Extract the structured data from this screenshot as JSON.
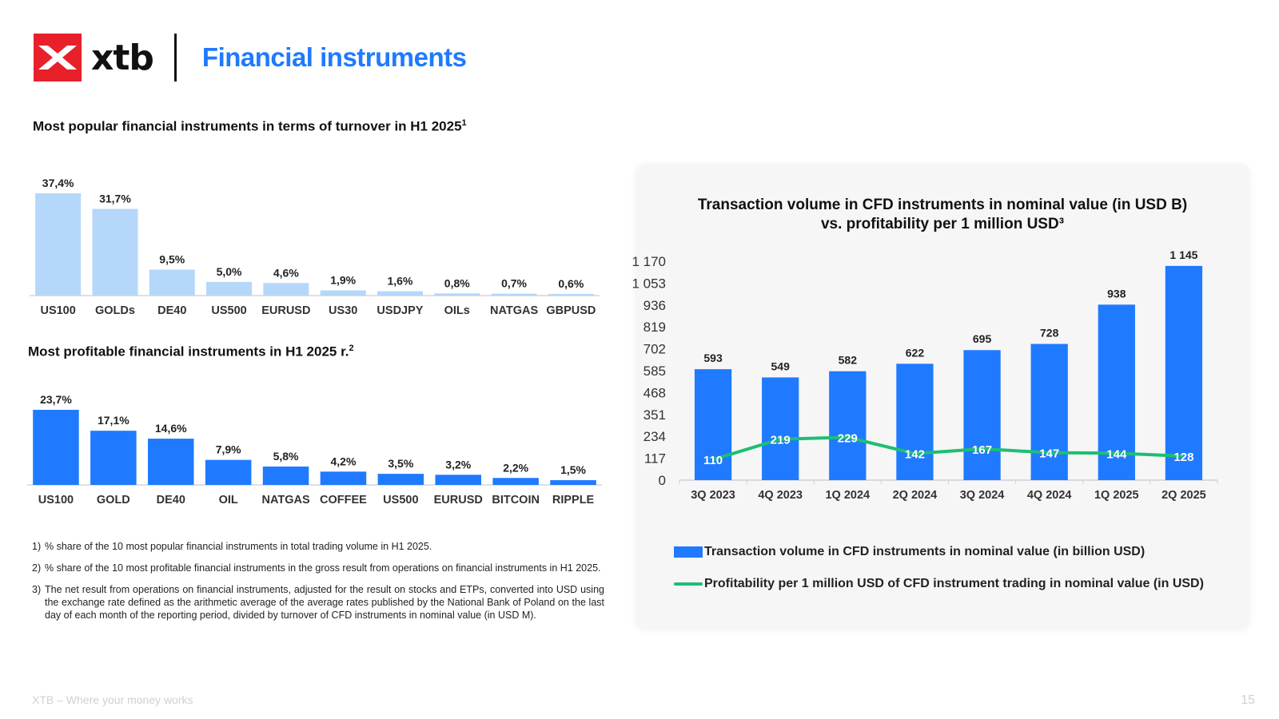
{
  "header": {
    "logo_text": "xtb",
    "title": "Financial instruments"
  },
  "turnover_section": {
    "title": "Most popular financial instruments in terms of turnover in H1 2025",
    "title_sup": "1"
  },
  "profit_section": {
    "title": "Most profitable financial instruments in H1 2025 r.",
    "title_sup": "2"
  },
  "panel": {
    "title_line1": "Transaction volume in CFD instruments in nominal value (in USD B)",
    "title_line2": "vs. profitability per 1 million USD³"
  },
  "legend": {
    "bar_label": "Transaction volume in CFD instruments in nominal value (in billion USD)",
    "line_label": "Profitability per 1 million USD of CFD instrument trading in nominal value (in USD)"
  },
  "notes": [
    {
      "num": "1)",
      "text": "% share of the 10 most popular financial instruments in total trading volume in H1 2025."
    },
    {
      "num": "2)",
      "text": "% share of the 10 most profitable financial instruments in the gross result from operations on financial instruments in H1 2025."
    },
    {
      "num": "3)",
      "text": "The net result from operations on financial instruments, adjusted for the result on stocks and ETPs, converted into USD using the exchange rate defined as the arithmetic average of the average rates published by the National Bank of Poland on the last day of each month of the reporting period, divided by turnover of CFD instruments in nominal value (in USD M)."
    }
  ],
  "footer": {
    "tagline": "XTB – Where your money works",
    "page_number": "15"
  },
  "colors": {
    "brand_red": "#e8202a",
    "title_blue": "#1f7aff",
    "light_bar": "#b5d7fa",
    "bar_blue": "#1f7aff",
    "line_green": "#1dbf73"
  },
  "chart_data": [
    {
      "type": "bar",
      "title": "Most popular financial instruments in terms of turnover in H1 2025",
      "categories": [
        "US100",
        "GOLDs",
        "DE40",
        "US500",
        "EURUSD",
        "US30",
        "USDJPY",
        "OILs",
        "NATGAS",
        "GBPUSD"
      ],
      "values": [
        37.4,
        31.7,
        9.5,
        5.0,
        4.6,
        1.9,
        1.6,
        0.8,
        0.7,
        0.6
      ],
      "labels": [
        "37,4%",
        "31,7%",
        "9,5%",
        "5,0%",
        "4,6%",
        "1,9%",
        "1,6%",
        "0,8%",
        "0,7%",
        "0,6%"
      ],
      "unit": "%",
      "color": "#b5d7fa"
    },
    {
      "type": "bar",
      "title": "Most profitable financial instruments in H1 2025 r.",
      "categories": [
        "US100",
        "GOLD",
        "DE40",
        "OIL",
        "NATGAS",
        "COFFEE",
        "US500",
        "EURUSD",
        "BITCOIN",
        "RIPPLE"
      ],
      "values": [
        23.7,
        17.1,
        14.6,
        7.9,
        5.8,
        4.2,
        3.5,
        3.2,
        2.2,
        1.5
      ],
      "labels": [
        "23,7%",
        "17,1%",
        "14,6%",
        "7,9%",
        "5,8%",
        "4,2%",
        "3,5%",
        "3,2%",
        "2,2%",
        "1,5%"
      ],
      "unit": "%",
      "color": "#1f7aff"
    },
    {
      "type": "bar",
      "title": "Transaction volume in CFD instruments in nominal value (in USD B) vs. profitability per 1 million USD³",
      "categories": [
        "3Q 2023",
        "4Q 2023",
        "1Q 2024",
        "2Q 2024",
        "3Q 2024",
        "4Q 2024",
        "1Q 2025",
        "2Q 2025"
      ],
      "series": [
        {
          "name": "Transaction volume in CFD instruments in nominal value (in billion USD)",
          "type": "bar",
          "values": [
            593,
            549,
            582,
            622,
            695,
            728,
            938,
            1145
          ],
          "labels": [
            "593",
            "549",
            "582",
            "622",
            "695",
            "728",
            "938",
            "1 145"
          ],
          "color": "#1f7aff"
        },
        {
          "name": "Profitability per 1 million USD of CFD instrument trading in nominal value (in USD)",
          "type": "line",
          "values": [
            110,
            219,
            229,
            142,
            167,
            147,
            144,
            128
          ],
          "labels": [
            "110",
            "219",
            "229",
            "142",
            "167",
            "147",
            "144",
            "128"
          ],
          "color": "#1dbf73"
        }
      ],
      "ylim": [
        0,
        1170
      ],
      "yticks": [
        "0",
        "117",
        "234",
        "351",
        "468",
        "585",
        "702",
        "819",
        "936",
        "1 053",
        "1 170"
      ],
      "grid": false,
      "legend": "bottom"
    }
  ]
}
